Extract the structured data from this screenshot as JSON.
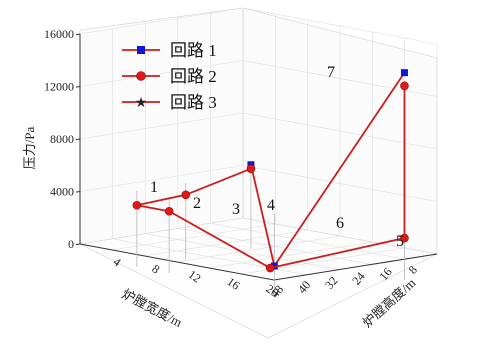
{
  "chart_data": {
    "type": "line3d",
    "zlabel": "压力/Pa",
    "xlabel": "炉膛宽度/m",
    "ylabel": "炉膛高度/m",
    "z_ticks": [
      "0",
      "4000",
      "8000",
      "12000",
      "16000"
    ],
    "x_ticks": [
      "4",
      "8",
      "12",
      "16",
      "20"
    ],
    "y_ticks": [
      "8",
      "16",
      "24",
      "32",
      "40",
      "48"
    ],
    "zlim": [
      0,
      16000
    ],
    "grid": true,
    "legend_position": "top-left",
    "colors": {
      "blue": "#1414d8",
      "red": "#e01818",
      "black": "#222222",
      "line": "#cc1d1d"
    },
    "series": [
      {
        "name": "回路 1",
        "marker": "square",
        "color": "#1414d8",
        "points": [
          {
            "x": 2,
            "y": 6,
            "z": 4600
          },
          {
            "x": 15,
            "y": 38,
            "z": 0
          },
          {
            "x": 3,
            "y": 46,
            "z": 14000
          }
        ]
      },
      {
        "name": "回路 2",
        "marker": "circle",
        "color": "#e01818",
        "points": [
          {
            "x": 2,
            "y": 6,
            "z": 4300
          },
          {
            "x": 10,
            "y": 6,
            "z": 3100
          },
          {
            "x": 16,
            "y": 6,
            "z": 2900
          },
          {
            "x": 16,
            "y": 14,
            "z": 2900
          },
          {
            "x": 16,
            "y": 39,
            "z": 0
          },
          {
            "x": 3,
            "y": 46,
            "z": 1400
          },
          {
            "x": 3,
            "y": 46,
            "z": 13000
          }
        ]
      },
      {
        "name": "回路 3",
        "marker": "star",
        "color": "#222222",
        "points": []
      }
    ],
    "point_labels": [
      "1",
      "2",
      "3",
      "4",
      "5",
      "6",
      "7"
    ]
  }
}
